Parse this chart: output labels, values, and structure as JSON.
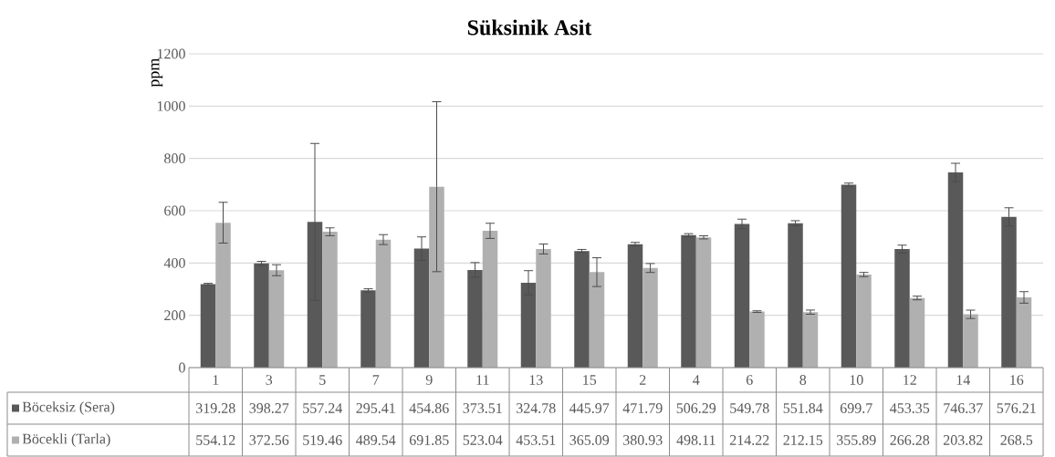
{
  "chart_data": {
    "type": "bar",
    "title": "Süksinik Asit",
    "ylabel": "ppm",
    "categories": [
      "1",
      "3",
      "5",
      "7",
      "9",
      "11",
      "13",
      "15",
      "2",
      "4",
      "6",
      "8",
      "10",
      "12",
      "14",
      "16"
    ],
    "series": [
      {
        "name": "Böceksiz (Sera)",
        "color": "#595959",
        "values": [
          319.28,
          398.27,
          557.24,
          295.41,
          454.86,
          373.51,
          324.78,
          445.97,
          471.79,
          506.29,
          549.78,
          551.84,
          699.7,
          453.35,
          746.37,
          576.21
        ],
        "errors": [
          3,
          8,
          300,
          6,
          45,
          28,
          46,
          6,
          7,
          6,
          18,
          10,
          6,
          15,
          35,
          35
        ],
        "value_labels": [
          "319.28",
          "398.27",
          "557.24",
          "295.41",
          "454.86",
          "373.51",
          "324.78",
          "445.97",
          "471.79",
          "506.29",
          "549.78",
          "551.84",
          "699.7",
          "453.35",
          "746.37",
          "576.21"
        ]
      },
      {
        "name": "Böcekli (Tarla)",
        "color": "#b0b0b0",
        "values": [
          554.12,
          372.56,
          519.46,
          489.54,
          691.85,
          523.04,
          453.51,
          365.09,
          380.93,
          498.11,
          214.22,
          212.15,
          355.89,
          266.28,
          203.82,
          268.5
        ],
        "errors": [
          78,
          21,
          15,
          19,
          325,
          29,
          19,
          55,
          17,
          6,
          3,
          8,
          8,
          7,
          16,
          22
        ],
        "value_labels": [
          "554.12",
          "372.56",
          "519.46",
          "489.54",
          "691.85",
          "523.04",
          "453.51",
          "365.09",
          "380.93",
          "498.11",
          "214.22",
          "212.15",
          "355.89",
          "266.28",
          "203.82",
          "268.5"
        ]
      }
    ],
    "ylim": [
      0,
      1200
    ],
    "yticks": [
      0,
      200,
      400,
      600,
      800,
      1000,
      1200
    ],
    "grid": "y",
    "legend": "bottom"
  }
}
